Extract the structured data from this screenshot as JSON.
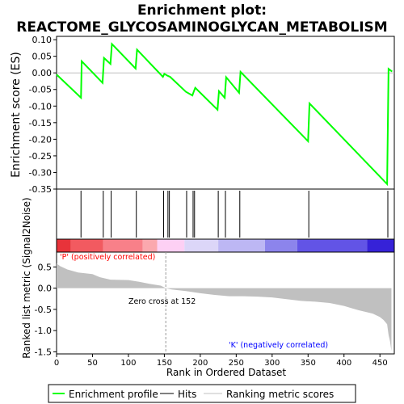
{
  "title_line1": "Enrichment plot:",
  "title_line2": "REACTOME_GLYCOSAMINOGLYCAN_METABOLISM",
  "colors": {
    "es_line": "#00ff00",
    "hit": "#000000",
    "metric_fill": "#c0c0c0",
    "pos_label": "#ff0000",
    "neg_label": "#0000ff",
    "zero_line": "#c0c0c0"
  },
  "legend": {
    "items": [
      "Enrichment profile",
      "Hits",
      "Ranking metric scores"
    ]
  },
  "chart_data": [
    {
      "type": "line",
      "name": "enrichment-profile",
      "ylabel": "Enrichment score (ES)",
      "xlim": [
        0,
        470
      ],
      "ylim": [
        -0.35,
        0.11
      ],
      "yticks": [
        0.1,
        0.05,
        0.0,
        -0.05,
        -0.1,
        -0.15,
        -0.2,
        -0.25,
        -0.3,
        -0.35
      ],
      "ytick_labels": [
        "0.10",
        "0.05",
        "0.00",
        "-0.05",
        "-0.10",
        "-0.15",
        "-0.20",
        "-0.25",
        "-0.30",
        "-0.35"
      ],
      "grid": false,
      "x": [
        0,
        34,
        35,
        64,
        66,
        75,
        77,
        110,
        112,
        148,
        150,
        154,
        156,
        158,
        180,
        189,
        191,
        193,
        224,
        226,
        234,
        236,
        254,
        256,
        350,
        352,
        460,
        462,
        467
      ],
      "y": [
        -0.005,
        -0.075,
        0.035,
        -0.03,
        0.045,
        0.027,
        0.087,
        0.013,
        0.07,
        -0.012,
        -0.003,
        -0.008,
        -0.01,
        -0.012,
        -0.057,
        -0.068,
        -0.056,
        -0.045,
        -0.111,
        -0.055,
        -0.075,
        -0.013,
        -0.06,
        0.003,
        -0.206,
        -0.092,
        -0.335,
        0.012,
        0.004
      ]
    },
    {
      "type": "scatter",
      "name": "hits",
      "xlim": [
        0,
        470
      ],
      "x": [
        34,
        65,
        76,
        111,
        149,
        155,
        157,
        181,
        190,
        192,
        225,
        235,
        255,
        351,
        461
      ]
    },
    {
      "type": "heatmap",
      "name": "ranked-list-colorbar",
      "xlim": [
        0,
        470
      ],
      "bands": [
        {
          "x": [
            0,
            20
          ],
          "color": "#e8333a"
        },
        {
          "x": [
            20,
            65
          ],
          "color": "#f25a60"
        },
        {
          "x": [
            65,
            120
          ],
          "color": "#f88089"
        },
        {
          "x": [
            120,
            140
          ],
          "color": "#fba8ae"
        },
        {
          "x": [
            140,
            178
          ],
          "color": "#fdd0f4"
        },
        {
          "x": [
            178,
            225
          ],
          "color": "#dcd6f8"
        },
        {
          "x": [
            225,
            290
          ],
          "color": "#bdb7f4"
        },
        {
          "x": [
            290,
            335
          ],
          "color": "#8c84ec"
        },
        {
          "x": [
            335,
            432
          ],
          "color": "#6254e6"
        },
        {
          "x": [
            432,
            470
          ],
          "color": "#3622d8"
        }
      ]
    },
    {
      "type": "area",
      "name": "ranking-metric",
      "ylabel": "Ranked list metric (Signal2Noise)",
      "xlabel": "Rank in Ordered Dataset",
      "xlim": [
        0,
        470
      ],
      "ylim": [
        -1.55,
        0.85
      ],
      "yticks": [
        0.5,
        0.0,
        -0.5,
        -1.0,
        -1.5
      ],
      "ytick_labels": [
        "0.5",
        "0.0",
        "-0.5",
        "-1.0",
        "-1.5"
      ],
      "xticks": [
        0,
        50,
        100,
        150,
        200,
        250,
        300,
        350,
        400,
        450
      ],
      "xtick_labels": [
        "0",
        "50",
        "100",
        "150",
        "200",
        "250",
        "300",
        "350",
        "400",
        "450"
      ],
      "x": [
        0,
        5,
        15,
        30,
        50,
        60,
        75,
        100,
        115,
        130,
        145,
        152,
        160,
        180,
        200,
        220,
        240,
        260,
        280,
        300,
        320,
        340,
        360,
        380,
        400,
        420,
        440,
        450,
        455,
        460,
        462,
        464,
        466
      ],
      "y": [
        0.58,
        0.52,
        0.44,
        0.37,
        0.33,
        0.26,
        0.2,
        0.19,
        0.15,
        0.1,
        0.06,
        0.0,
        -0.03,
        -0.07,
        -0.12,
        -0.16,
        -0.19,
        -0.19,
        -0.2,
        -0.22,
        -0.26,
        -0.3,
        -0.32,
        -0.35,
        -0.42,
        -0.52,
        -0.6,
        -0.68,
        -0.75,
        -0.85,
        -1.1,
        -1.25,
        -1.48
      ],
      "annotations": {
        "positive": "'P' (positively correlated)",
        "negative": "'K' (negatively correlated)",
        "zero_cross": "Zero cross at 152"
      },
      "zero_cross_x": 152
    }
  ]
}
